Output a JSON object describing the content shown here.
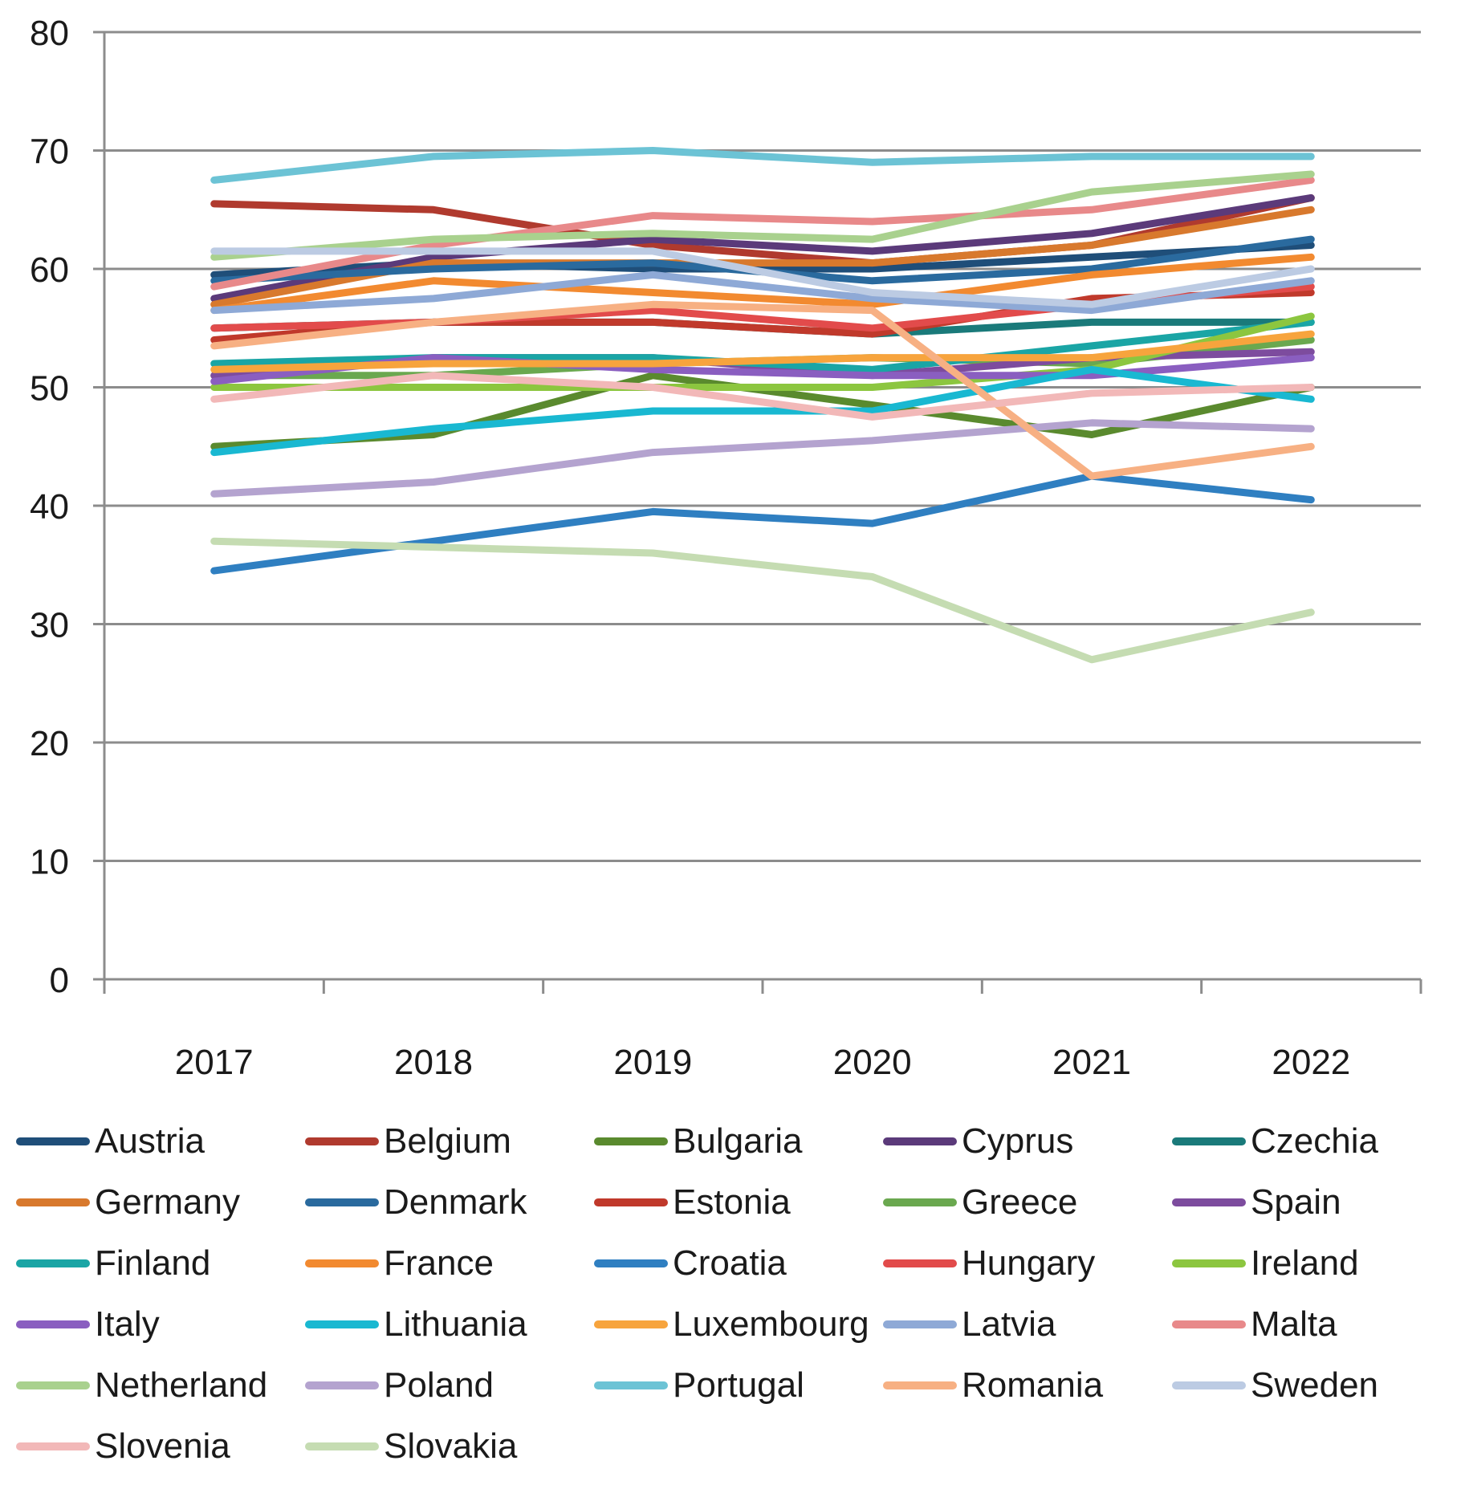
{
  "chart_data": {
    "type": "line",
    "title": "",
    "xlabel": "",
    "ylabel": "",
    "categories": [
      "2017",
      "2018",
      "2019",
      "2020",
      "2021",
      "2022"
    ],
    "ylim": [
      0,
      80
    ],
    "yticks": [
      0,
      10,
      20,
      30,
      40,
      50,
      60,
      70,
      80
    ],
    "grid": true,
    "legend_position": "bottom",
    "series": [
      {
        "name": "Austria",
        "color": "#1f4e79",
        "values": [
          59.5,
          60.5,
          60.0,
          60.0,
          61.0,
          62.0
        ]
      },
      {
        "name": "Belgium",
        "color": "#b03a2e",
        "values": [
          65.5,
          65.0,
          62.0,
          60.5,
          62.0,
          66.0
        ]
      },
      {
        "name": "Bulgaria",
        "color": "#5a8a2e",
        "values": [
          45.0,
          46.0,
          51.0,
          48.5,
          46.0,
          50.0
        ]
      },
      {
        "name": "Cyprus",
        "color": "#5b3a7a",
        "values": [
          57.5,
          61.0,
          62.5,
          61.5,
          63.0,
          66.0
        ]
      },
      {
        "name": "Czechia",
        "color": "#1a7a7a",
        "values": [
          55.0,
          55.5,
          55.5,
          54.5,
          55.5,
          55.5
        ]
      },
      {
        "name": "Germany",
        "color": "#d8792d",
        "values": [
          57.0,
          60.5,
          60.5,
          60.5,
          62.0,
          65.0
        ]
      },
      {
        "name": "Denmark",
        "color": "#2a6a9e",
        "values": [
          59.0,
          60.0,
          60.5,
          59.0,
          60.0,
          62.5
        ]
      },
      {
        "name": "Estonia",
        "color": "#c0392b",
        "values": [
          54.0,
          55.5,
          55.5,
          54.5,
          57.5,
          58.0
        ]
      },
      {
        "name": "Greece",
        "color": "#6aa84f",
        "values": [
          51.0,
          51.0,
          52.0,
          52.5,
          52.0,
          54.0
        ]
      },
      {
        "name": "Spain",
        "color": "#7d4c9e",
        "values": [
          51.0,
          52.5,
          52.5,
          51.0,
          52.5,
          53.0
        ]
      },
      {
        "name": "Finland",
        "color": "#1aa5a5",
        "values": [
          52.0,
          52.5,
          52.5,
          51.5,
          53.5,
          55.5
        ]
      },
      {
        "name": "France",
        "color": "#f28a30",
        "values": [
          56.5,
          59.0,
          58.0,
          57.0,
          59.5,
          61.0
        ]
      },
      {
        "name": "Croatia",
        "color": "#2f7fc1",
        "values": [
          34.5,
          37.0,
          39.5,
          38.5,
          42.5,
          40.5
        ]
      },
      {
        "name": "Hungary",
        "color": "#e24b4b",
        "values": [
          55.0,
          55.5,
          56.5,
          55.0,
          57.0,
          58.5
        ]
      },
      {
        "name": "Ireland",
        "color": "#8cc63f",
        "values": [
          50.0,
          50.0,
          50.0,
          50.0,
          51.5,
          56.0
        ]
      },
      {
        "name": "Italy",
        "color": "#8a5ec0",
        "values": [
          50.5,
          52.5,
          51.5,
          51.0,
          51.0,
          52.5
        ]
      },
      {
        "name": "Lithuania",
        "color": "#19b8d1",
        "values": [
          44.5,
          46.5,
          48.0,
          48.0,
          51.5,
          49.0
        ]
      },
      {
        "name": "Luxembourg",
        "color": "#f7a43d",
        "values": [
          51.5,
          52.0,
          52.0,
          52.5,
          52.5,
          54.5
        ]
      },
      {
        "name": "Latvia",
        "color": "#8ea9d6",
        "values": [
          56.5,
          57.5,
          59.5,
          57.5,
          56.5,
          59.0
        ]
      },
      {
        "name": "Malta",
        "color": "#e8898a",
        "values": [
          58.5,
          62.0,
          64.5,
          64.0,
          65.0,
          67.5
        ]
      },
      {
        "name": "Netherland",
        "color": "#a9d18e",
        "values": [
          61.0,
          62.5,
          63.0,
          62.5,
          66.5,
          68.0
        ]
      },
      {
        "name": "Poland",
        "color": "#b4a3cf",
        "values": [
          41.0,
          42.0,
          44.5,
          45.5,
          47.0,
          46.5
        ]
      },
      {
        "name": "Portugal",
        "color": "#6cc3d5",
        "values": [
          67.5,
          69.5,
          70.0,
          69.0,
          69.5,
          69.5
        ]
      },
      {
        "name": "Romania",
        "color": "#f7b083",
        "values": [
          53.5,
          55.5,
          57.0,
          56.5,
          42.5,
          45.0
        ]
      },
      {
        "name": "Sweden",
        "color": "#bccbe3",
        "values": [
          61.5,
          61.5,
          61.5,
          58.0,
          57.0,
          60.0
        ]
      },
      {
        "name": "Slovenia",
        "color": "#f2b8b8",
        "values": [
          49.0,
          51.0,
          50.0,
          47.5,
          49.5,
          50.0
        ]
      },
      {
        "name": "Slovakia",
        "color": "#c5dcb2",
        "values": [
          37.0,
          36.5,
          36.0,
          34.0,
          27.0,
          31.0
        ]
      }
    ]
  }
}
